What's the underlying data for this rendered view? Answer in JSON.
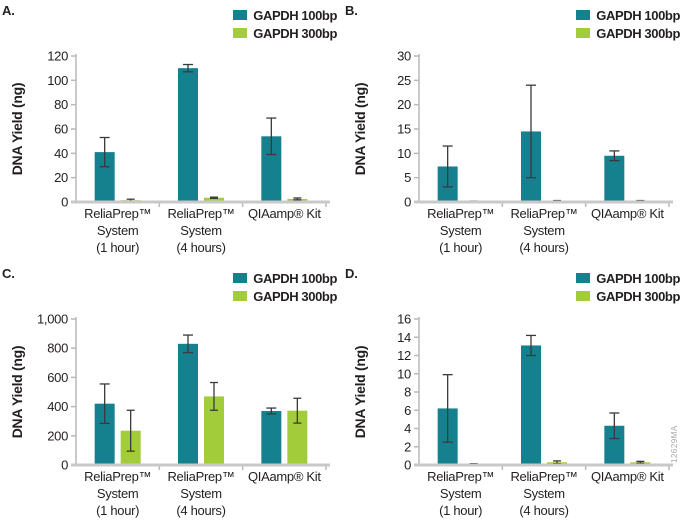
{
  "figure": {
    "ylabel": "DNA Yield (ng)",
    "watermark": "12629MA"
  },
  "legend": {
    "items": [
      {
        "label": "GAPDH 100bp",
        "color": "#15808E"
      },
      {
        "label": "GAPDH 300bp",
        "color": "#A3CC3B"
      }
    ]
  },
  "colors": {
    "teal": "#15808E",
    "green": "#A3CC3B",
    "error_bar": "#3a3a3a",
    "axis": "#b9b9b9",
    "baseline": "#c9c9c9"
  },
  "chart_data": [
    {
      "type": "bar",
      "panel": "A.",
      "ylabel": "DNA Yield (ng)",
      "ylim": [
        0,
        120
      ],
      "ytick_labels": [
        "0",
        "20",
        "40",
        "60",
        "80",
        "100",
        "120"
      ],
      "categories": [
        [
          "ReliaPrep™",
          "System",
          "(1 hour)"
        ],
        [
          "ReliaPrep™",
          "System",
          "(4 hours)"
        ],
        [
          "QIAamp® Kit"
        ]
      ],
      "series": [
        {
          "name": "GAPDH 100bp",
          "color": "#15808E",
          "values": [
            41,
            110,
            54
          ],
          "errors": [
            12,
            3,
            15
          ]
        },
        {
          "name": "GAPDH 300bp",
          "color": "#A3CC3B",
          "values": [
            1.5,
            3.5,
            2.5
          ],
          "errors": [
            0.8,
            0.5,
            0.8
          ]
        }
      ]
    },
    {
      "type": "bar",
      "panel": "B.",
      "ylabel": "DNA Yield (ng)",
      "ylim": [
        0,
        30
      ],
      "ytick_labels": [
        "0",
        "5",
        "10",
        "15",
        "20",
        "25",
        "30"
      ],
      "categories": [
        [
          "ReliaPrep™",
          "System",
          "(1 hour)"
        ],
        [
          "ReliaPrep™",
          "System",
          "(4 hours)"
        ],
        [
          "QIAamp® Kit"
        ]
      ],
      "series": [
        {
          "name": "GAPDH 100bp",
          "color": "#15808E",
          "values": [
            7.3,
            14.5,
            9.5
          ],
          "errors": [
            4.2,
            9.5,
            1.0
          ]
        },
        {
          "name": "GAPDH 300bp",
          "color": "#A3CC3B",
          "values": [
            0.15,
            0.2,
            0.2
          ],
          "errors": [
            0.05,
            0.1,
            0.1
          ]
        }
      ]
    },
    {
      "type": "bar",
      "panel": "C.",
      "ylabel": "DNA Yield (ng)",
      "ylim": [
        0,
        1000
      ],
      "ytick_labels": [
        "0",
        "200",
        "400",
        "600",
        "800",
        "1,000"
      ],
      "categories": [
        [
          "ReliaPrep™",
          "System",
          "(1 hour)"
        ],
        [
          "ReliaPrep™",
          "System",
          "(4 hours)"
        ],
        [
          "QIAamp® Kit"
        ]
      ],
      "series": [
        {
          "name": "GAPDH 100bp",
          "color": "#15808E",
          "values": [
            420,
            830,
            370
          ],
          "errors": [
            135,
            60,
            20
          ]
        },
        {
          "name": "GAPDH 300bp",
          "color": "#A3CC3B",
          "values": [
            235,
            470,
            372
          ],
          "errors": [
            140,
            95,
            85
          ]
        }
      ]
    },
    {
      "type": "bar",
      "panel": "D.",
      "ylabel": "DNA Yield (ng)",
      "ylim": [
        0,
        16
      ],
      "ytick_labels": [
        "0",
        "2",
        "4",
        "6",
        "8",
        "10",
        "12",
        "14",
        "16"
      ],
      "categories": [
        [
          "ReliaPrep™",
          "System",
          "(1 hour)"
        ],
        [
          "ReliaPrep™",
          "System",
          "(4 hours)"
        ],
        [
          "QIAamp® Kit"
        ]
      ],
      "series": [
        {
          "name": "GAPDH 100bp",
          "color": "#15808E",
          "values": [
            6.2,
            13.1,
            4.3
          ],
          "errors": [
            3.7,
            1.1,
            1.4
          ]
        },
        {
          "name": "GAPDH 300bp",
          "color": "#A3CC3B",
          "values": [
            0.1,
            0.3,
            0.3
          ],
          "errors": [
            0.05,
            0.15,
            0.1
          ]
        }
      ]
    }
  ]
}
